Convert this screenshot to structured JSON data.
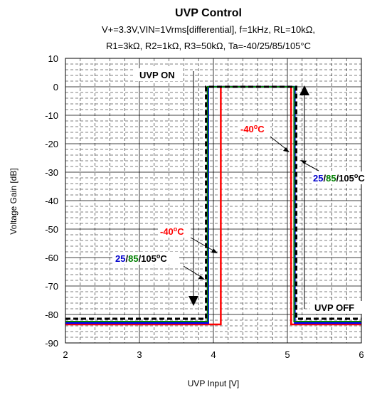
{
  "chart_data": {
    "type": "line",
    "title": "UVP Control",
    "subtitle_lines": [
      "V+=3.3V,VIN=1Vrms[differential], f=1kHz, RL=10kΩ,",
      "R1=3kΩ, R2=1kΩ, R3=50kΩ, Ta=-40/25/85/105°C"
    ],
    "xlabel": "UVP Input [V]",
    "ylabel": "Voltage Gain [dB]",
    "xlim": [
      2,
      6
    ],
    "ylim": [
      -90,
      10
    ],
    "x_ticks": [
      2,
      3,
      4,
      5,
      6
    ],
    "y_ticks": [
      10,
      0,
      -10,
      -20,
      -30,
      -40,
      -50,
      -60,
      -70,
      -80,
      -90
    ],
    "grid": true,
    "series": [
      {
        "name": "-40°C",
        "color": "#ff0000",
        "x": [
          2,
          4.1,
          4.1,
          5.05,
          5.05,
          6
        ],
        "y": [
          -83.5,
          -83.5,
          0,
          0,
          -83.5,
          -83.5
        ]
      },
      {
        "name": "25°C",
        "color": "#0000ff",
        "x": [
          2,
          3.93,
          3.93,
          5.1,
          5.1,
          6
        ],
        "y": [
          -83,
          -83,
          0,
          0,
          -83,
          -83
        ]
      },
      {
        "name": "85°C",
        "color": "#008000",
        "x": [
          2,
          3.92,
          3.92,
          5.09,
          5.09,
          6
        ],
        "y": [
          -82.5,
          -82.5,
          0,
          0,
          -82.5,
          -82.5
        ]
      },
      {
        "name": "105°C",
        "color": "#000000",
        "x": [
          2,
          3.9,
          3.9,
          5.12,
          5.12,
          6
        ],
        "y": [
          -81.5,
          -81.5,
          0,
          0,
          -81.5,
          -81.5
        ]
      }
    ],
    "annotations": {
      "uvp_on": "UVP ON",
      "uvp_off": "UVP OFF",
      "m40_left": "-40°C",
      "m40_right": "-40°C",
      "temps_a": "25",
      "temps_b": "85",
      "temps_c": "105",
      "temps_slash": "/",
      "temps_unit": "°C",
      "temps_unit_o": "o",
      "temps_unit_c": "C",
      "m40_prefix": "-40",
      "color_25": "#0000cc",
      "color_85": "#008000",
      "color_105": "#000000",
      "color_m40": "#ff0000"
    }
  }
}
